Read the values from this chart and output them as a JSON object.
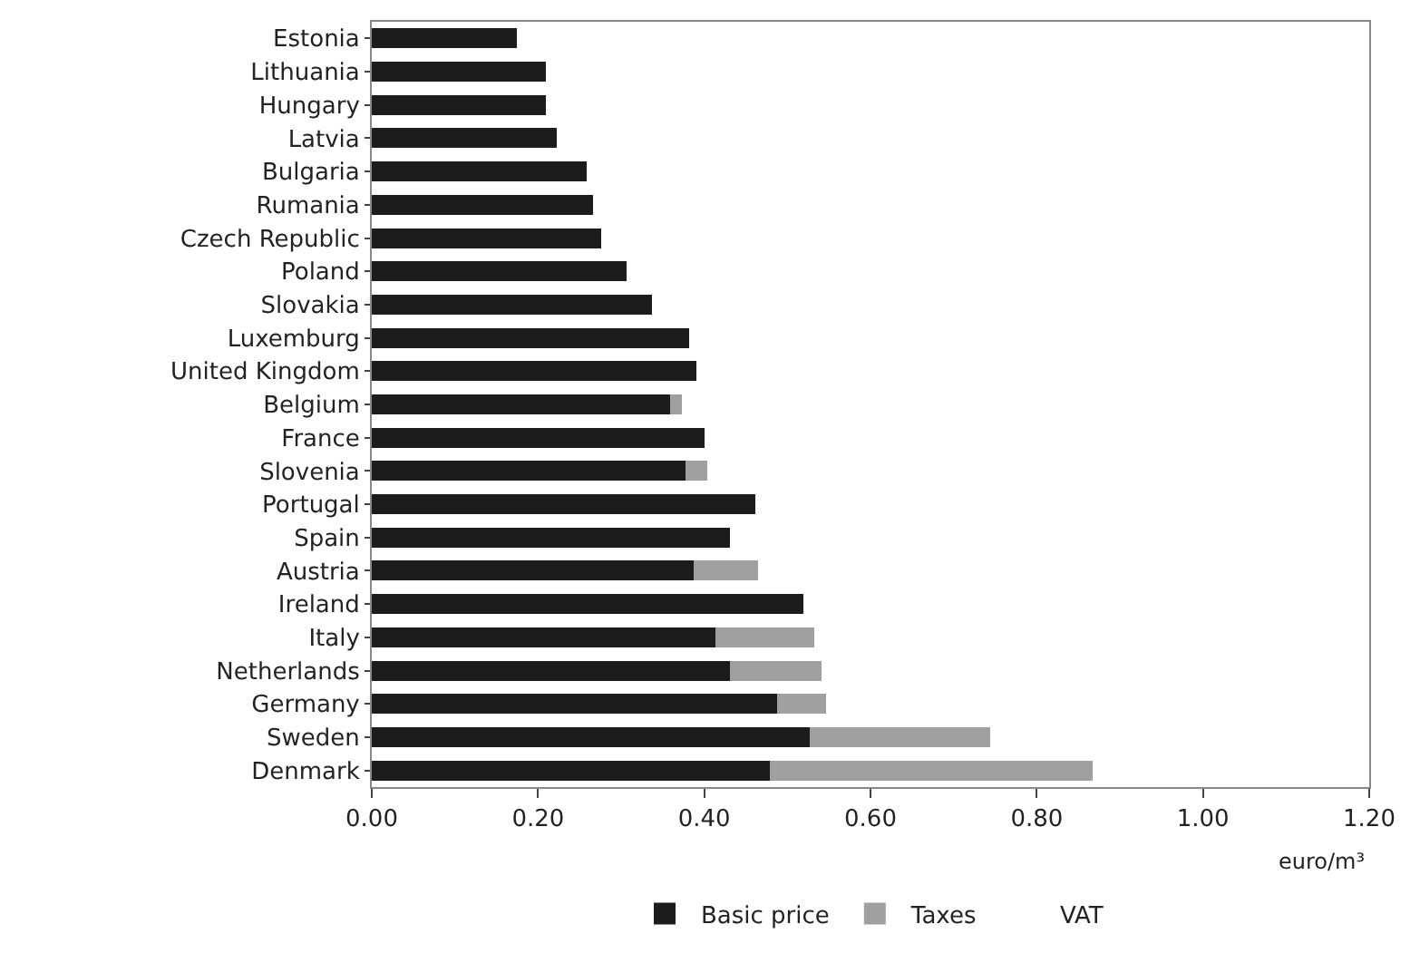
{
  "chart_data": {
    "type": "bar",
    "orientation": "horizontal",
    "stacked": true,
    "categories": [
      "Estonia",
      "Lithuania",
      "Hungary",
      "Latvia",
      "Bulgaria",
      "Rumania",
      "Czech Republic",
      "Poland",
      "Slovakia",
      "Luxemburg",
      "United Kingdom",
      "Belgium",
      "France",
      "Slovenia",
      "Portugal",
      "Spain",
      "Austria",
      "Ireland",
      "Italy",
      "Netherlands",
      "Germany",
      "Sweden",
      "Denmark"
    ],
    "series": [
      {
        "name": "Basic price",
        "color": "#1c1c1c",
        "values": [
          0.174,
          0.209,
          0.209,
          0.222,
          0.258,
          0.266,
          0.276,
          0.307,
          0.337,
          0.382,
          0.39,
          0.359,
          0.4,
          0.377,
          0.461,
          0.431,
          0.387,
          0.519,
          0.413,
          0.431,
          0.488,
          0.527,
          0.479
        ]
      },
      {
        "name": "Taxes",
        "color": "#a0a0a0",
        "values": [
          0,
          0,
          0,
          0,
          0,
          0,
          0,
          0,
          0,
          0,
          0,
          0.014,
          0,
          0.027,
          0,
          0,
          0.078,
          0,
          0.119,
          0.11,
          0.058,
          0.217,
          0.388
        ]
      },
      {
        "name": "VAT",
        "values": [
          0,
          0,
          0,
          0,
          0,
          0,
          0,
          0,
          0,
          0,
          0,
          0,
          0,
          0,
          0,
          0,
          0,
          0,
          0,
          0,
          0,
          0,
          0
        ]
      }
    ],
    "xlim": [
      0,
      1.2
    ],
    "xticks": [
      {
        "value": 0,
        "label": "0.00"
      },
      {
        "value": 0.2,
        "label": "0.20"
      },
      {
        "value": 0.4,
        "label": "0.40"
      },
      {
        "value": 0.6,
        "label": "0.60"
      },
      {
        "value": 0.8,
        "label": "0.80"
      },
      {
        "value": 1.0,
        "label": "1.00"
      },
      {
        "value": 1.2,
        "label": "1.20"
      }
    ],
    "xlabel": "euro/m³",
    "legend": "bottom"
  }
}
